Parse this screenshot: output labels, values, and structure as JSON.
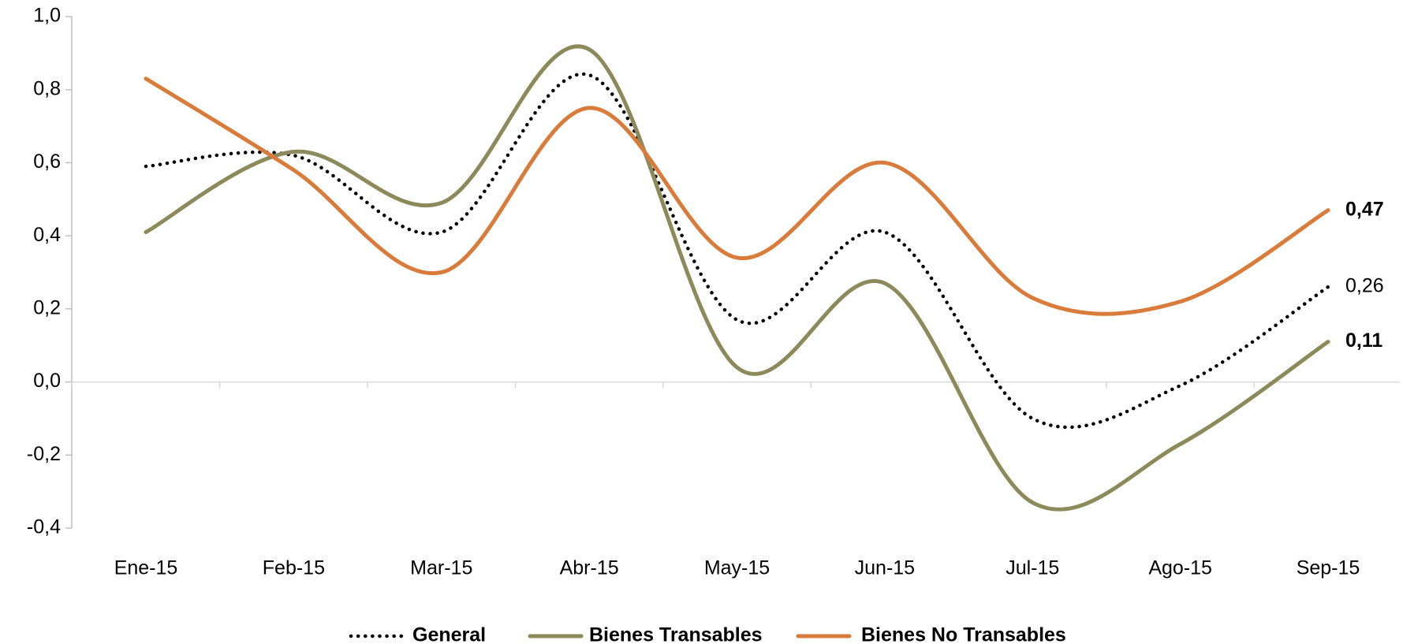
{
  "chart_data": {
    "type": "line",
    "categories": [
      "Ene-15",
      "Feb-15",
      "Mar-15",
      "Abr-15",
      "May-15",
      "Jun-15",
      "Jul-15",
      "Ago-15",
      "Sep-15"
    ],
    "series": [
      {
        "name": "General",
        "color": "#000000",
        "dash": "dotted",
        "values": [
          0.59,
          0.62,
          0.41,
          0.84,
          0.17,
          0.41,
          -0.1,
          -0.01,
          0.26
        ],
        "value_labels": [
          null,
          null,
          null,
          null,
          null,
          null,
          null,
          null,
          "0,26"
        ],
        "label_color": "#000000"
      },
      {
        "name": "Bienes Transables",
        "color": "#8c8a5a",
        "dash": "solid",
        "values": [
          0.41,
          0.63,
          0.49,
          0.91,
          0.04,
          0.27,
          -0.33,
          -0.17,
          0.11
        ],
        "value_labels": [
          null,
          null,
          null,
          null,
          null,
          null,
          null,
          null,
          "0,11"
        ],
        "label_color": "#8a8a1a"
      },
      {
        "name": "Bienes No Transables",
        "color": "#d97b3a",
        "dash": "solid",
        "values": [
          0.83,
          0.58,
          0.3,
          0.75,
          0.34,
          0.6,
          0.23,
          0.22,
          0.47
        ],
        "value_labels": [
          null,
          null,
          null,
          null,
          null,
          null,
          null,
          null,
          "0,47"
        ],
        "label_color": "#e0935a"
      }
    ],
    "ylim": [
      -0.4,
      1.0
    ],
    "yticks": [
      {
        "value": -0.4,
        "label": "-0,4"
      },
      {
        "value": -0.2,
        "label": "-0,2"
      },
      {
        "value": 0,
        "label": "0,0"
      },
      {
        "value": 0.2,
        "label": "0,2"
      },
      {
        "value": 0.4,
        "label": "0,4"
      },
      {
        "value": 0.6,
        "label": "0,6"
      },
      {
        "value": 0.8,
        "label": "0,8"
      },
      {
        "value": 1.0,
        "label": "1,0"
      }
    ],
    "smooth": true,
    "legend": "bottom"
  }
}
